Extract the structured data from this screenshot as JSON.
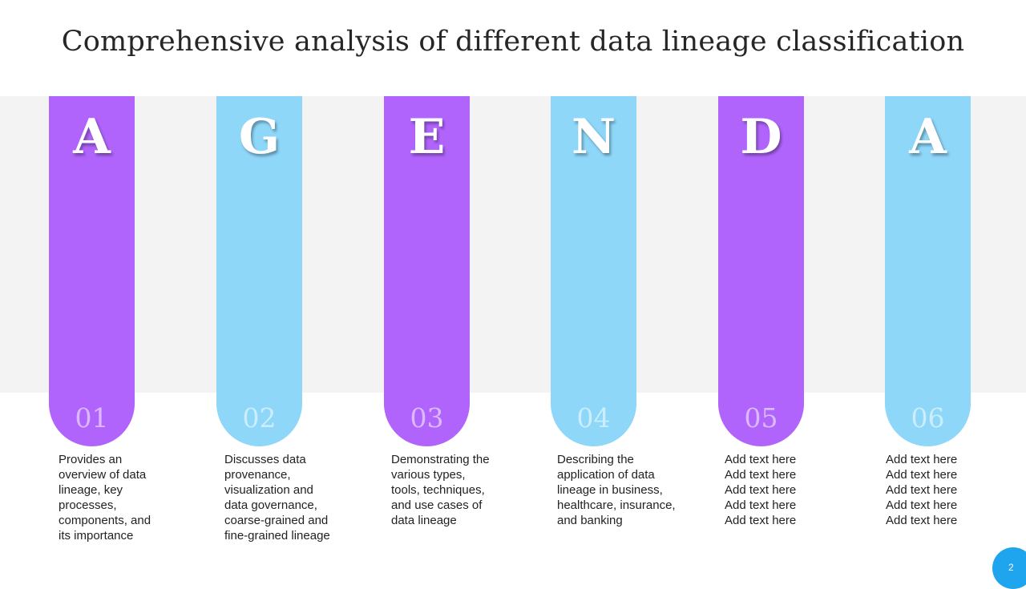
{
  "title": "Comprehensive analysis of different data lineage classification",
  "colors": {
    "purple": "#b064fb",
    "blue": "#8ed7f9",
    "band": "#f3f3f3",
    "badge": "#1fa4ee"
  },
  "items": [
    {
      "letter": "A",
      "number": "01",
      "color": "purple",
      "lines": [
        "Provides an",
        "overview of data",
        "lineage, key",
        "processes,",
        "components, and",
        "its importance"
      ]
    },
    {
      "letter": "G",
      "number": "02",
      "color": "blue",
      "lines": [
        "Discusses data",
        "provenance,",
        "visualization and",
        "data governance,",
        "coarse-grained and",
        "fine-grained lineage"
      ]
    },
    {
      "letter": "E",
      "number": "03",
      "color": "purple",
      "lines": [
        "Demonstrating the",
        "various types,",
        "tools, techniques,",
        "and use cases of",
        "data lineage"
      ]
    },
    {
      "letter": "N",
      "number": "04",
      "color": "blue",
      "lines": [
        "Describing the",
        "application of data",
        "lineage in business,",
        "healthcare, insurance,",
        "and banking"
      ]
    },
    {
      "letter": "D",
      "number": "05",
      "color": "purple",
      "lines": [
        "Add text here",
        "Add text here",
        "Add text here",
        "Add text here",
        "Add text here"
      ]
    },
    {
      "letter": "A",
      "number": "06",
      "color": "blue",
      "lines": [
        "Add text here",
        "Add text here",
        "Add text here",
        "Add text here",
        "Add text here"
      ]
    }
  ],
  "page_number": "2"
}
